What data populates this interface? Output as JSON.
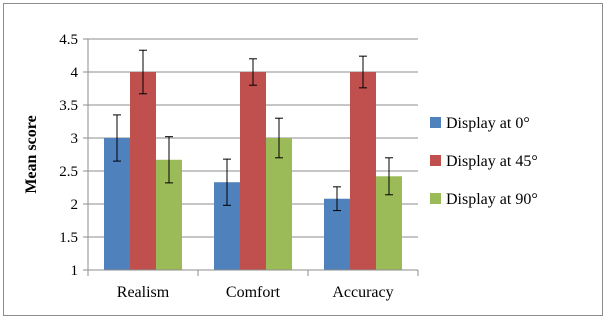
{
  "chart_data": {
    "type": "bar",
    "title": "",
    "xlabel": "",
    "ylabel": "Mean score",
    "ylim": [
      1,
      4.5
    ],
    "yticks": [
      "1",
      "1.5",
      "2",
      "2.5",
      "3",
      "3.5",
      "4",
      "4.5"
    ],
    "grid": true,
    "legend_position": "right",
    "categories": [
      "Realism",
      "Comfort",
      "Accuracy"
    ],
    "series": [
      {
        "name": "Display at 0°",
        "color": "#4f81bd",
        "values": [
          3.0,
          2.33,
          2.08
        ],
        "errors": [
          0.35,
          0.35,
          0.18
        ]
      },
      {
        "name": "Display at 45°",
        "color": "#c0504d",
        "values": [
          4.0,
          4.0,
          4.0
        ],
        "errors": [
          0.33,
          0.2,
          0.24
        ]
      },
      {
        "name": "Display at 90°",
        "color": "#9bbb59",
        "values": [
          2.67,
          3.0,
          2.42
        ],
        "errors": [
          0.35,
          0.3,
          0.28
        ]
      }
    ]
  }
}
